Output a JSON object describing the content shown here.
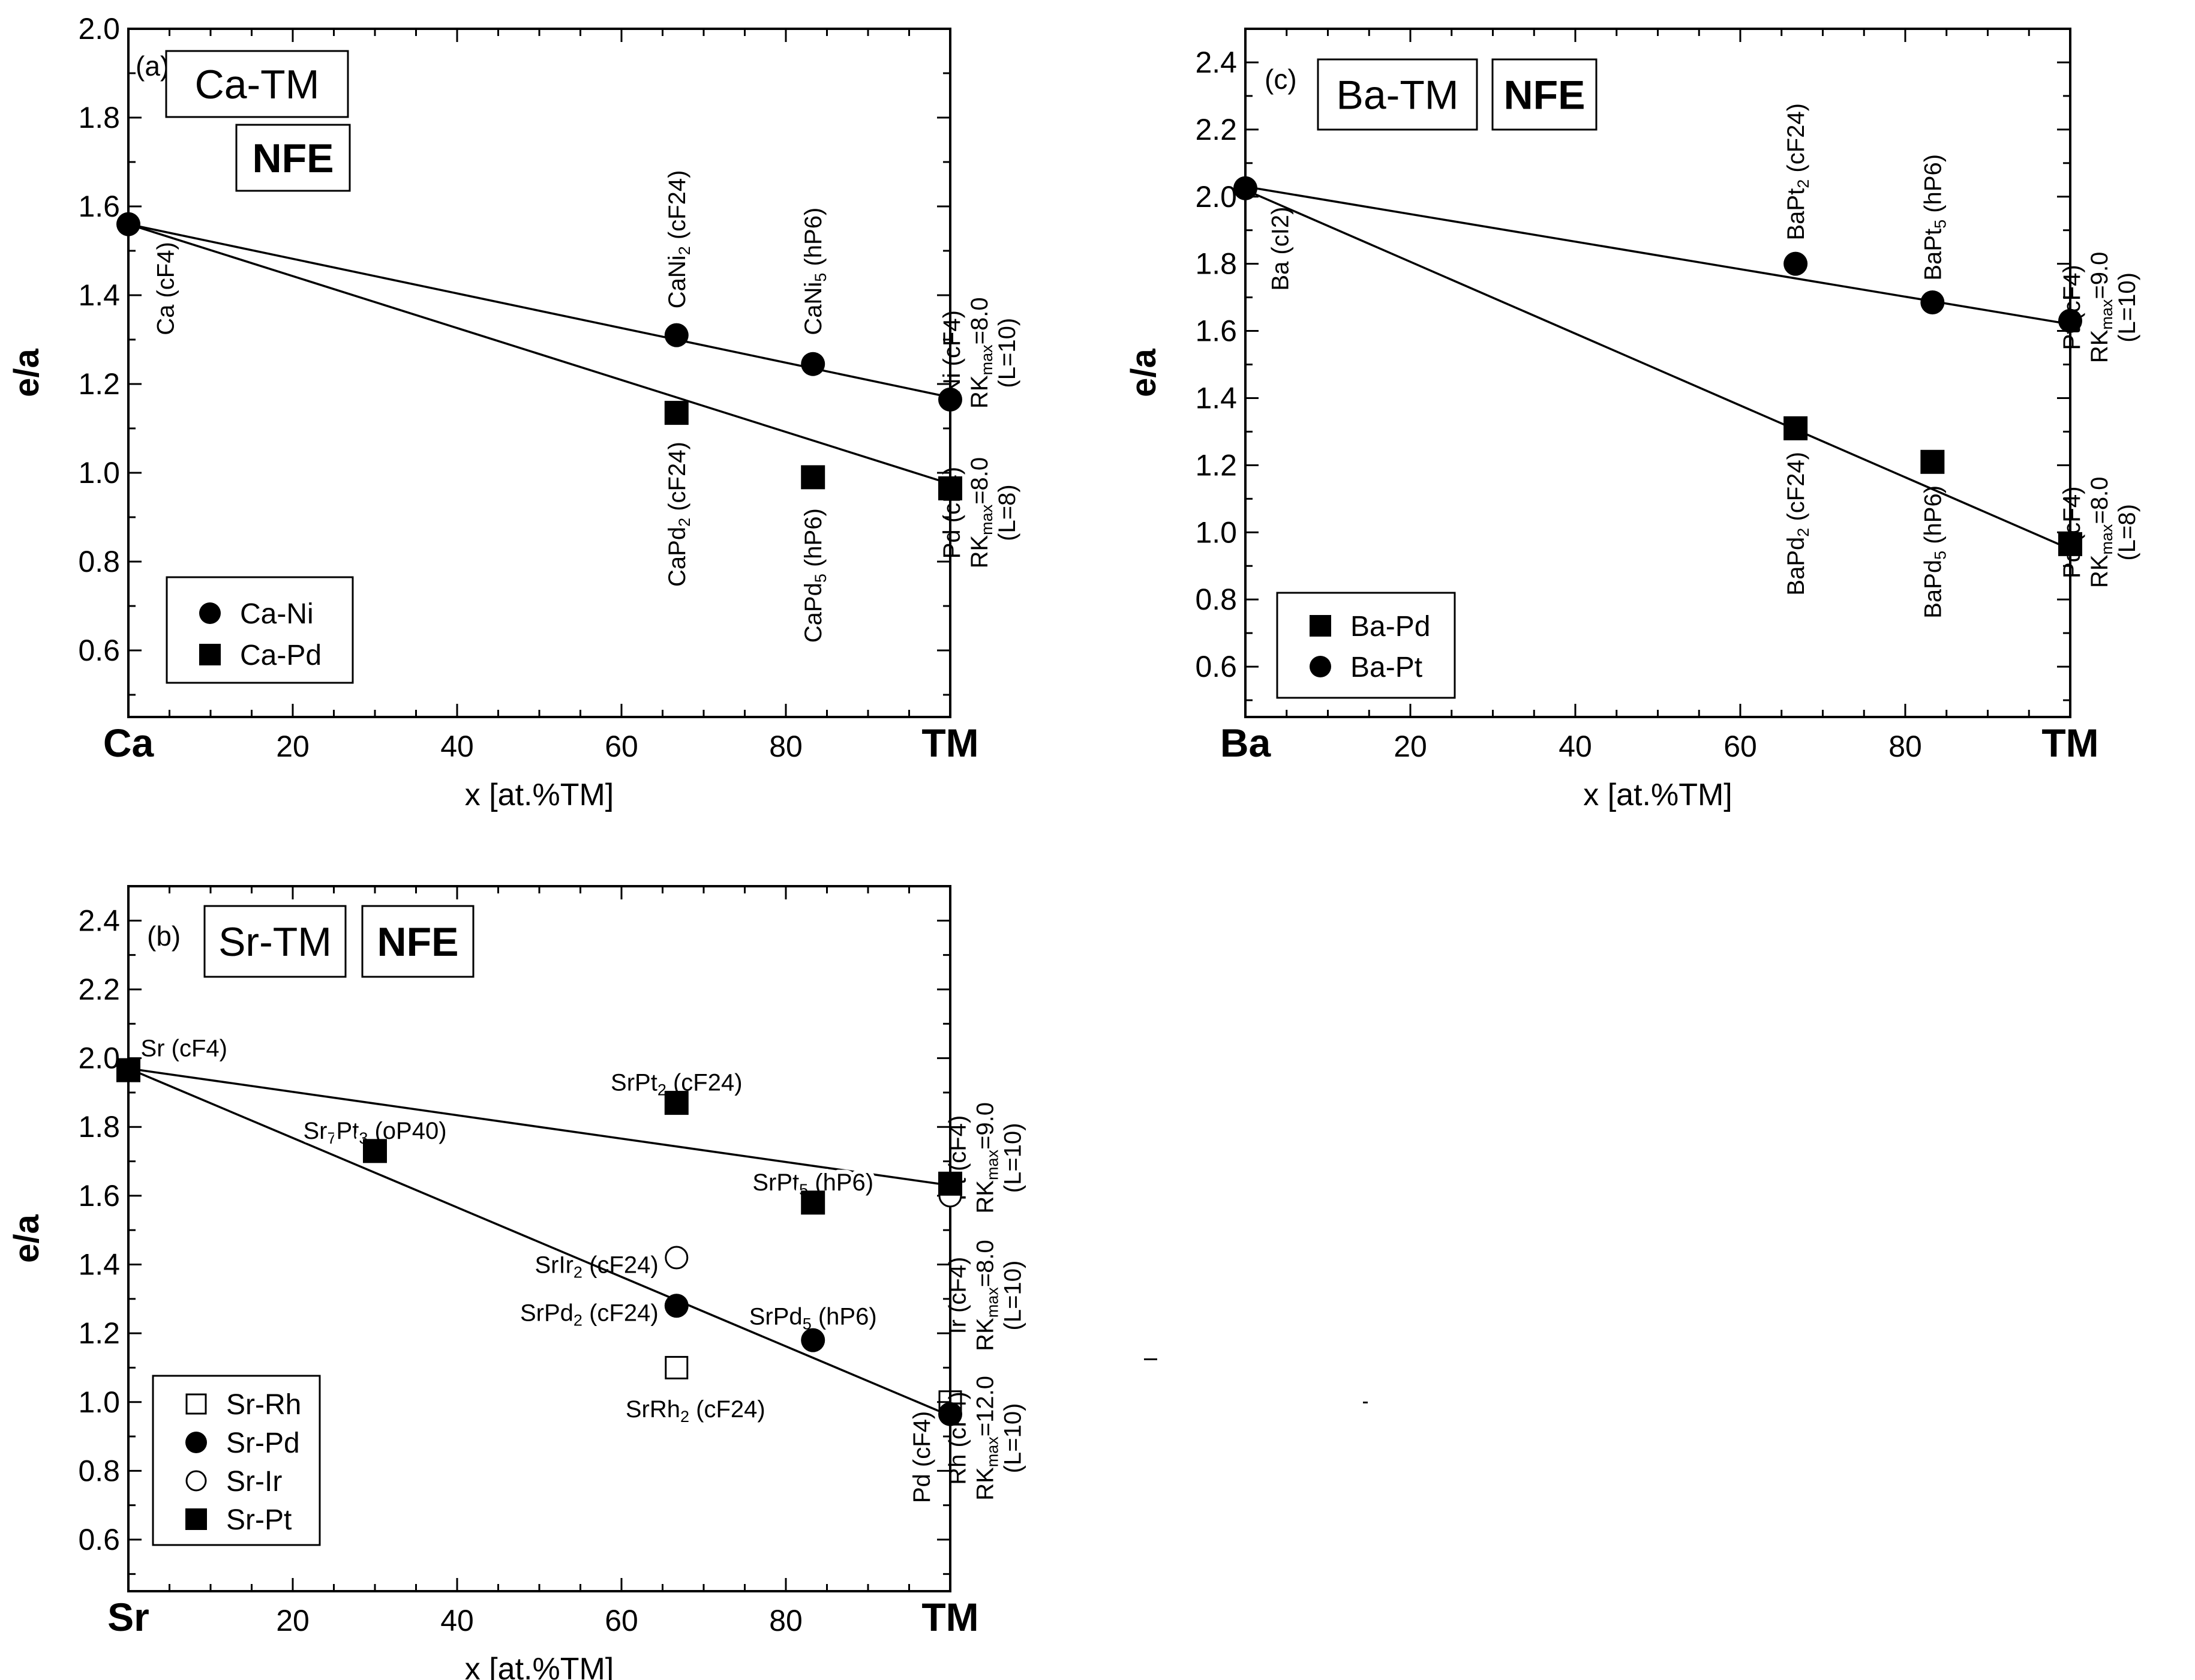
{
  "chart_data": [
    {
      "id": "a",
      "type": "scatter",
      "panel_label": "(a)",
      "system_label": "Ca-TM",
      "nfe_label": "NFE",
      "xlabel": "x [at.%TM]",
      "ylabel": "e/a",
      "xlim": [
        0,
        100
      ],
      "ylim": [
        0.45,
        2.0
      ],
      "x_ticks": [
        {
          "v": 0,
          "label": "Ca",
          "bold": true
        },
        {
          "v": 20,
          "label": "20"
        },
        {
          "v": 40,
          "label": "40"
        },
        {
          "v": 60,
          "label": "60"
        },
        {
          "v": 80,
          "label": "80"
        },
        {
          "v": 100,
          "label": "TM",
          "bold": true
        }
      ],
      "y_ticks": [
        {
          "v": 0.6,
          "label": "0.6"
        },
        {
          "v": 0.8,
          "label": "0.8"
        },
        {
          "v": 1.0,
          "label": "1.0"
        },
        {
          "v": 1.2,
          "label": "1.2"
        },
        {
          "v": 1.4,
          "label": "1.4"
        },
        {
          "v": 1.6,
          "label": "1.6"
        },
        {
          "v": 1.8,
          "label": "1.8"
        },
        {
          "v": 2.0,
          "label": "2.0"
        }
      ],
      "series": [
        {
          "name": "Ca-Ni",
          "marker": "circle-filled",
          "x": [
            0,
            66.7,
            83.3,
            100
          ],
          "y": [
            1.56,
            1.31,
            1.245,
            1.165
          ]
        },
        {
          "name": "Ca-Pd",
          "marker": "square-filled",
          "x": [
            66.7,
            83.3,
            100
          ],
          "y": [
            1.135,
            0.99,
            0.965
          ]
        }
      ],
      "fit_lines": [
        {
          "series": "Ca-Ni",
          "x": [
            0,
            100
          ],
          "y": [
            1.56,
            1.17
          ]
        },
        {
          "series": "Ca-Pd",
          "x": [
            0,
            100
          ],
          "y": [
            1.56,
            0.975
          ]
        }
      ],
      "legend": {
        "position": "bottom-left",
        "entries": [
          {
            "name": "Ca-Ni",
            "marker": "circle-filled"
          },
          {
            "name": "Ca-Pd",
            "marker": "square-filled"
          }
        ]
      },
      "annotations": [
        {
          "x": 4.5,
          "y": 1.52,
          "rot": -90,
          "anchor": "end",
          "lines": [
            [
              {
                "t": "Ca (cF4)"
              }
            ]
          ]
        },
        {
          "x": 66.7,
          "y": 1.37,
          "rot": -90,
          "anchor": "start",
          "lines": [
            [
              {
                "t": "CaNi"
              },
              {
                "t": "2",
                "sub": true
              },
              {
                "t": " (cF24)"
              }
            ]
          ]
        },
        {
          "x": 83.3,
          "y": 1.31,
          "rot": -90,
          "anchor": "start",
          "lines": [
            [
              {
                "t": "CaNi"
              },
              {
                "t": "5",
                "sub": true
              },
              {
                "t": " (hP6)"
              }
            ]
          ]
        },
        {
          "x": 66.7,
          "y": 1.07,
          "rot": -90,
          "anchor": "end",
          "lines": [
            [
              {
                "t": "CaPd"
              },
              {
                "t": "2",
                "sub": true
              },
              {
                "t": " (cF24)"
              }
            ]
          ]
        },
        {
          "x": 83.3,
          "y": 0.92,
          "rot": -90,
          "anchor": "end",
          "lines": [
            [
              {
                "t": "CaPd"
              },
              {
                "t": "5",
                "sub": true
              },
              {
                "t": " (hP6)"
              }
            ]
          ]
        },
        {
          "x": 103.5,
          "y": 1.27,
          "rot": -90,
          "anchor": "middle",
          "lines": [
            [
              {
                "t": "Ni (cF4)"
              }
            ],
            [
              {
                "t": "RK"
              },
              {
                "t": "max",
                "sub": true
              },
              {
                "t": "=8.0"
              }
            ],
            [
              {
                "t": "(L=10)"
              }
            ]
          ]
        },
        {
          "x": 103.5,
          "y": 0.91,
          "rot": -90,
          "anchor": "middle",
          "lines": [
            [
              {
                "t": "Pd (cF4)"
              }
            ],
            [
              {
                "t": "RK"
              },
              {
                "t": "max",
                "sub": true
              },
              {
                "t": "=8.0"
              }
            ],
            [
              {
                "t": "(L=8)"
              }
            ]
          ]
        }
      ]
    },
    {
      "id": "c",
      "type": "scatter",
      "panel_label": "(c)",
      "system_label": "Ba-TM",
      "nfe_label": "NFE",
      "xlabel": "x [at.%TM]",
      "ylabel": "e/a",
      "xlim": [
        0,
        100
      ],
      "ylim": [
        0.45,
        2.5
      ],
      "x_ticks": [
        {
          "v": 0,
          "label": "Ba",
          "bold": true
        },
        {
          "v": 20,
          "label": "20"
        },
        {
          "v": 40,
          "label": "40"
        },
        {
          "v": 60,
          "label": "60"
        },
        {
          "v": 80,
          "label": "80"
        },
        {
          "v": 100,
          "label": "TM",
          "bold": true
        }
      ],
      "y_ticks": [
        {
          "v": 0.6,
          "label": "0.6"
        },
        {
          "v": 0.8,
          "label": "0.8"
        },
        {
          "v": 1.0,
          "label": "1.0"
        },
        {
          "v": 1.2,
          "label": "1.2"
        },
        {
          "v": 1.4,
          "label": "1.4"
        },
        {
          "v": 1.6,
          "label": "1.6"
        },
        {
          "v": 1.8,
          "label": "1.8"
        },
        {
          "v": 2.0,
          "label": "2.0"
        },
        {
          "v": 2.2,
          "label": "2.2"
        },
        {
          "v": 2.4,
          "label": "2.4"
        }
      ],
      "series": [
        {
          "name": "Ba-Pd",
          "marker": "square-filled",
          "x": [
            66.7,
            83.3,
            100
          ],
          "y": [
            1.31,
            1.21,
            0.965
          ]
        },
        {
          "name": "Ba-Pt",
          "marker": "circle-filled",
          "x": [
            0,
            66.7,
            83.3,
            100
          ],
          "y": [
            2.025,
            1.8,
            1.685,
            1.63
          ]
        }
      ],
      "fit_lines": [
        {
          "series": "Ba-Pt",
          "x": [
            0,
            100
          ],
          "y": [
            2.03,
            1.62
          ]
        },
        {
          "series": "Ba-Pd",
          "x": [
            0,
            100
          ],
          "y": [
            2.02,
            0.95
          ]
        }
      ],
      "legend": {
        "position": "bottom-left",
        "entries": [
          {
            "name": "Ba-Pd",
            "marker": "square-filled"
          },
          {
            "name": "Ba-Pt",
            "marker": "circle-filled"
          }
        ]
      },
      "annotations": [
        {
          "x": 4.2,
          "y": 1.97,
          "rot": -90,
          "anchor": "end",
          "lines": [
            [
              {
                "t": "Ba (cI2)"
              }
            ]
          ]
        },
        {
          "x": 66.7,
          "y": 1.87,
          "rot": -90,
          "anchor": "start",
          "lines": [
            [
              {
                "t": "BaPt"
              },
              {
                "t": "2",
                "sub": true
              },
              {
                "t": " (cF24)"
              }
            ]
          ]
        },
        {
          "x": 83.3,
          "y": 1.75,
          "rot": -90,
          "anchor": "start",
          "lines": [
            [
              {
                "t": "BaPt"
              },
              {
                "t": "5",
                "sub": true
              },
              {
                "t": " (hP6)"
              }
            ]
          ]
        },
        {
          "x": 66.7,
          "y": 1.24,
          "rot": -90,
          "anchor": "end",
          "lines": [
            [
              {
                "t": "BaPd"
              },
              {
                "t": "2",
                "sub": true
              },
              {
                "t": " (cF24)"
              }
            ]
          ]
        },
        {
          "x": 83.3,
          "y": 1.14,
          "rot": -90,
          "anchor": "end",
          "lines": [
            [
              {
                "t": "BaPd"
              },
              {
                "t": "5",
                "sub": true
              },
              {
                "t": " (hP6)"
              }
            ]
          ]
        },
        {
          "x": 103.5,
          "y": 1.67,
          "rot": -90,
          "anchor": "middle",
          "lines": [
            [
              {
                "t": "Pt (cF4)"
              }
            ],
            [
              {
                "t": "RK"
              },
              {
                "t": "max",
                "sub": true
              },
              {
                "t": "=9.0"
              }
            ],
            [
              {
                "t": "(L=10)"
              }
            ]
          ]
        },
        {
          "x": 103.5,
          "y": 1.0,
          "rot": -90,
          "anchor": "middle",
          "lines": [
            [
              {
                "t": "Pd (cF4)"
              }
            ],
            [
              {
                "t": "RK"
              },
              {
                "t": "max",
                "sub": true
              },
              {
                "t": "=8.0"
              }
            ],
            [
              {
                "t": "(L=8)"
              }
            ]
          ]
        }
      ]
    },
    {
      "id": "b",
      "type": "scatter",
      "panel_label": "(b)",
      "system_label": "Sr-TM",
      "nfe_label": "NFE",
      "xlabel": "x [at.%TM]",
      "ylabel": "e/a",
      "xlim": [
        0,
        100
      ],
      "ylim": [
        0.45,
        2.5
      ],
      "x_ticks": [
        {
          "v": 0,
          "label": "Sr",
          "bold": true
        },
        {
          "v": 20,
          "label": "20"
        },
        {
          "v": 40,
          "label": "40"
        },
        {
          "v": 60,
          "label": "60"
        },
        {
          "v": 80,
          "label": "80"
        },
        {
          "v": 100,
          "label": "TM",
          "bold": true
        }
      ],
      "y_ticks": [
        {
          "v": 0.6,
          "label": "0.6"
        },
        {
          "v": 0.8,
          "label": "0.8"
        },
        {
          "v": 1.0,
          "label": "1.0"
        },
        {
          "v": 1.2,
          "label": "1.2"
        },
        {
          "v": 1.4,
          "label": "1.4"
        },
        {
          "v": 1.6,
          "label": "1.6"
        },
        {
          "v": 1.8,
          "label": "1.8"
        },
        {
          "v": 2.0,
          "label": "2.0"
        },
        {
          "v": 2.2,
          "label": "2.2"
        },
        {
          "v": 2.4,
          "label": "2.4"
        }
      ],
      "series": [
        {
          "name": "Sr-Rh",
          "marker": "square-open",
          "x": [
            66.7,
            100
          ],
          "y": [
            1.1,
            1.0
          ]
        },
        {
          "name": "Sr-Pd",
          "marker": "circle-filled",
          "x": [
            66.7,
            83.3,
            100
          ],
          "y": [
            1.28,
            1.18,
            0.965
          ]
        },
        {
          "name": "Sr-Ir",
          "marker": "circle-open",
          "x": [
            66.7,
            100
          ],
          "y": [
            1.42,
            1.6
          ]
        },
        {
          "name": "Sr-Pt",
          "marker": "square-filled",
          "x": [
            0,
            30,
            66.7,
            83.3,
            100
          ],
          "y": [
            1.965,
            1.73,
            1.87,
            1.58,
            1.635
          ]
        }
      ],
      "fit_lines": [
        {
          "series": "Sr-Pt",
          "x": [
            0,
            100
          ],
          "y": [
            1.97,
            1.63
          ]
        },
        {
          "series": "Sr-Pd",
          "x": [
            0,
            100
          ],
          "y": [
            1.97,
            0.96
          ]
        }
      ],
      "legend": {
        "position": "bottom-left",
        "entries": [
          {
            "name": "Sr-Rh",
            "marker": "square-open"
          },
          {
            "name": "Sr-Pd",
            "marker": "circle-filled"
          },
          {
            "name": "Sr-Ir",
            "marker": "circle-open"
          },
          {
            "name": "Sr-Pt",
            "marker": "square-filled"
          }
        ]
      },
      "annotations": [
        {
          "x": 1.5,
          "y": 2.03,
          "rot": 0,
          "anchor": "start",
          "lines": [
            [
              {
                "t": "Sr (cF4)"
              }
            ]
          ]
        },
        {
          "x": 30,
          "y": 1.79,
          "rot": 0,
          "anchor": "middle",
          "bg": true,
          "lines": [
            [
              {
                "t": "Sr"
              },
              {
                "t": "7",
                "sub": true
              },
              {
                "t": "Pt"
              },
              {
                "t": "3",
                "sub": true
              },
              {
                "t": " (oP40)"
              }
            ]
          ]
        },
        {
          "x": 66.7,
          "y": 1.93,
          "rot": 0,
          "anchor": "middle",
          "lines": [
            [
              {
                "t": "SrPt"
              },
              {
                "t": "2",
                "sub": true
              },
              {
                "t": " (cF24)"
              }
            ]
          ]
        },
        {
          "x": 83.3,
          "y": 1.64,
          "rot": 0,
          "anchor": "middle",
          "bg": true,
          "lines": [
            [
              {
                "t": "SrPt"
              },
              {
                "t": "5",
                "sub": true
              },
              {
                "t": " (hP6)"
              }
            ]
          ]
        },
        {
          "x": 64.5,
          "y": 1.4,
          "rot": 0,
          "anchor": "end",
          "lines": [
            [
              {
                "t": "SrIr"
              },
              {
                "t": "2",
                "sub": true
              },
              {
                "t": " (cF24)"
              }
            ]
          ]
        },
        {
          "x": 64.5,
          "y": 1.26,
          "rot": 0,
          "anchor": "end",
          "lines": [
            [
              {
                "t": "SrPd"
              },
              {
                "t": "2",
                "sub": true
              },
              {
                "t": " (cF24)"
              }
            ]
          ]
        },
        {
          "x": 83.3,
          "y": 1.25,
          "rot": 0,
          "anchor": "middle",
          "lines": [
            [
              {
                "t": "SrPd"
              },
              {
                "t": "5",
                "sub": true
              },
              {
                "t": " (hP6)"
              }
            ]
          ]
        },
        {
          "x": 69.0,
          "y": 0.98,
          "rot": 0,
          "anchor": "middle",
          "lines": [
            [
              {
                "t": "SrRh"
              },
              {
                "t": "2",
                "sub": true
              },
              {
                "t": " (cF24)"
              }
            ]
          ]
        },
        {
          "x": 96.5,
          "y": 0.84,
          "rot": -90,
          "anchor": "middle",
          "lines": [
            [
              {
                "t": "Pd (cF4)"
              }
            ]
          ]
        },
        {
          "x": 104.2,
          "y": 1.71,
          "rot": -90,
          "anchor": "middle",
          "lines": [
            [
              {
                "t": "Pt (cF4)"
              }
            ],
            [
              {
                "t": "RK"
              },
              {
                "t": "max",
                "sub": true
              },
              {
                "t": "=9.0"
              }
            ],
            [
              {
                "t": "(L=10)"
              }
            ]
          ]
        },
        {
          "x": 104.2,
          "y": 1.31,
          "rot": -90,
          "anchor": "middle",
          "lines": [
            [
              {
                "t": "Ir (cF4)"
              }
            ],
            [
              {
                "t": "RK"
              },
              {
                "t": "max",
                "sub": true
              },
              {
                "t": "=8.0"
              }
            ],
            [
              {
                "t": "(L=10)"
              }
            ]
          ]
        },
        {
          "x": 104.2,
          "y": 0.895,
          "rot": -90,
          "anchor": "middle",
          "lines": [
            [
              {
                "t": "Rh (cF4)"
              }
            ],
            [
              {
                "t": "RK"
              },
              {
                "t": "max",
                "sub": true
              },
              {
                "t": "=12.0"
              }
            ],
            [
              {
                "t": "(L=10)"
              }
            ]
          ]
        }
      ]
    }
  ]
}
